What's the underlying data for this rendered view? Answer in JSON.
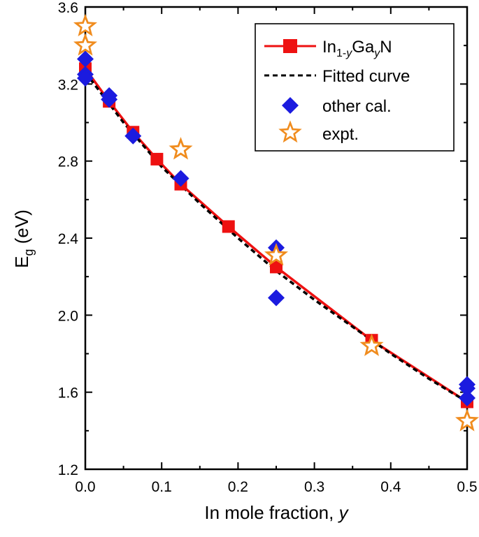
{
  "chart_data": {
    "type": "scatter",
    "title": "",
    "xlabel": "In mole fraction, y",
    "ylabel": "Eg (eV)",
    "xlim": [
      0.0,
      0.5
    ],
    "ylim": [
      1.2,
      3.6
    ],
    "x_ticks": [
      "0.0",
      "0.1",
      "0.2",
      "0.3",
      "0.4",
      "0.5"
    ],
    "y_ticks": [
      "1.2",
      "1.6",
      "2.0",
      "2.4",
      "2.8",
      "3.2",
      "3.6"
    ],
    "grid": false,
    "legend_position": "top-right",
    "series": [
      {
        "name": "In1-yGayN",
        "style": "line+square",
        "color": "#ee1111",
        "x": [
          0.0,
          0.03125,
          0.0625,
          0.09375,
          0.125,
          0.1875,
          0.25,
          0.375,
          0.5
        ],
        "y": [
          3.28,
          3.11,
          2.95,
          2.81,
          2.68,
          2.46,
          2.25,
          1.87,
          1.55
        ]
      },
      {
        "name": "Fitted curve",
        "style": "dashed",
        "color": "#000000",
        "x": [
          0.0,
          0.05,
          0.1,
          0.15,
          0.2,
          0.25,
          0.3,
          0.35,
          0.4,
          0.45,
          0.5
        ],
        "y": [
          3.26,
          3.0,
          2.77,
          2.58,
          2.4,
          2.23,
          2.08,
          1.94,
          1.8,
          1.67,
          1.55
        ]
      },
      {
        "name": "other cal.",
        "style": "diamond",
        "color": "#1b1bdf",
        "x": [
          0.0,
          0.0,
          0.0,
          0.03125,
          0.03125,
          0.0625,
          0.125,
          0.25,
          0.25,
          0.5,
          0.5,
          0.5
        ],
        "y": [
          3.33,
          3.25,
          3.23,
          3.14,
          3.12,
          2.93,
          2.71,
          2.35,
          2.09,
          1.64,
          1.62,
          1.57
        ]
      },
      {
        "name": "expt.",
        "style": "star",
        "color": "#f08c1e",
        "x": [
          0.0,
          0.0,
          0.125,
          0.25,
          0.375,
          0.5
        ],
        "y": [
          3.5,
          3.4,
          2.86,
          2.31,
          1.84,
          1.45
        ]
      }
    ]
  }
}
